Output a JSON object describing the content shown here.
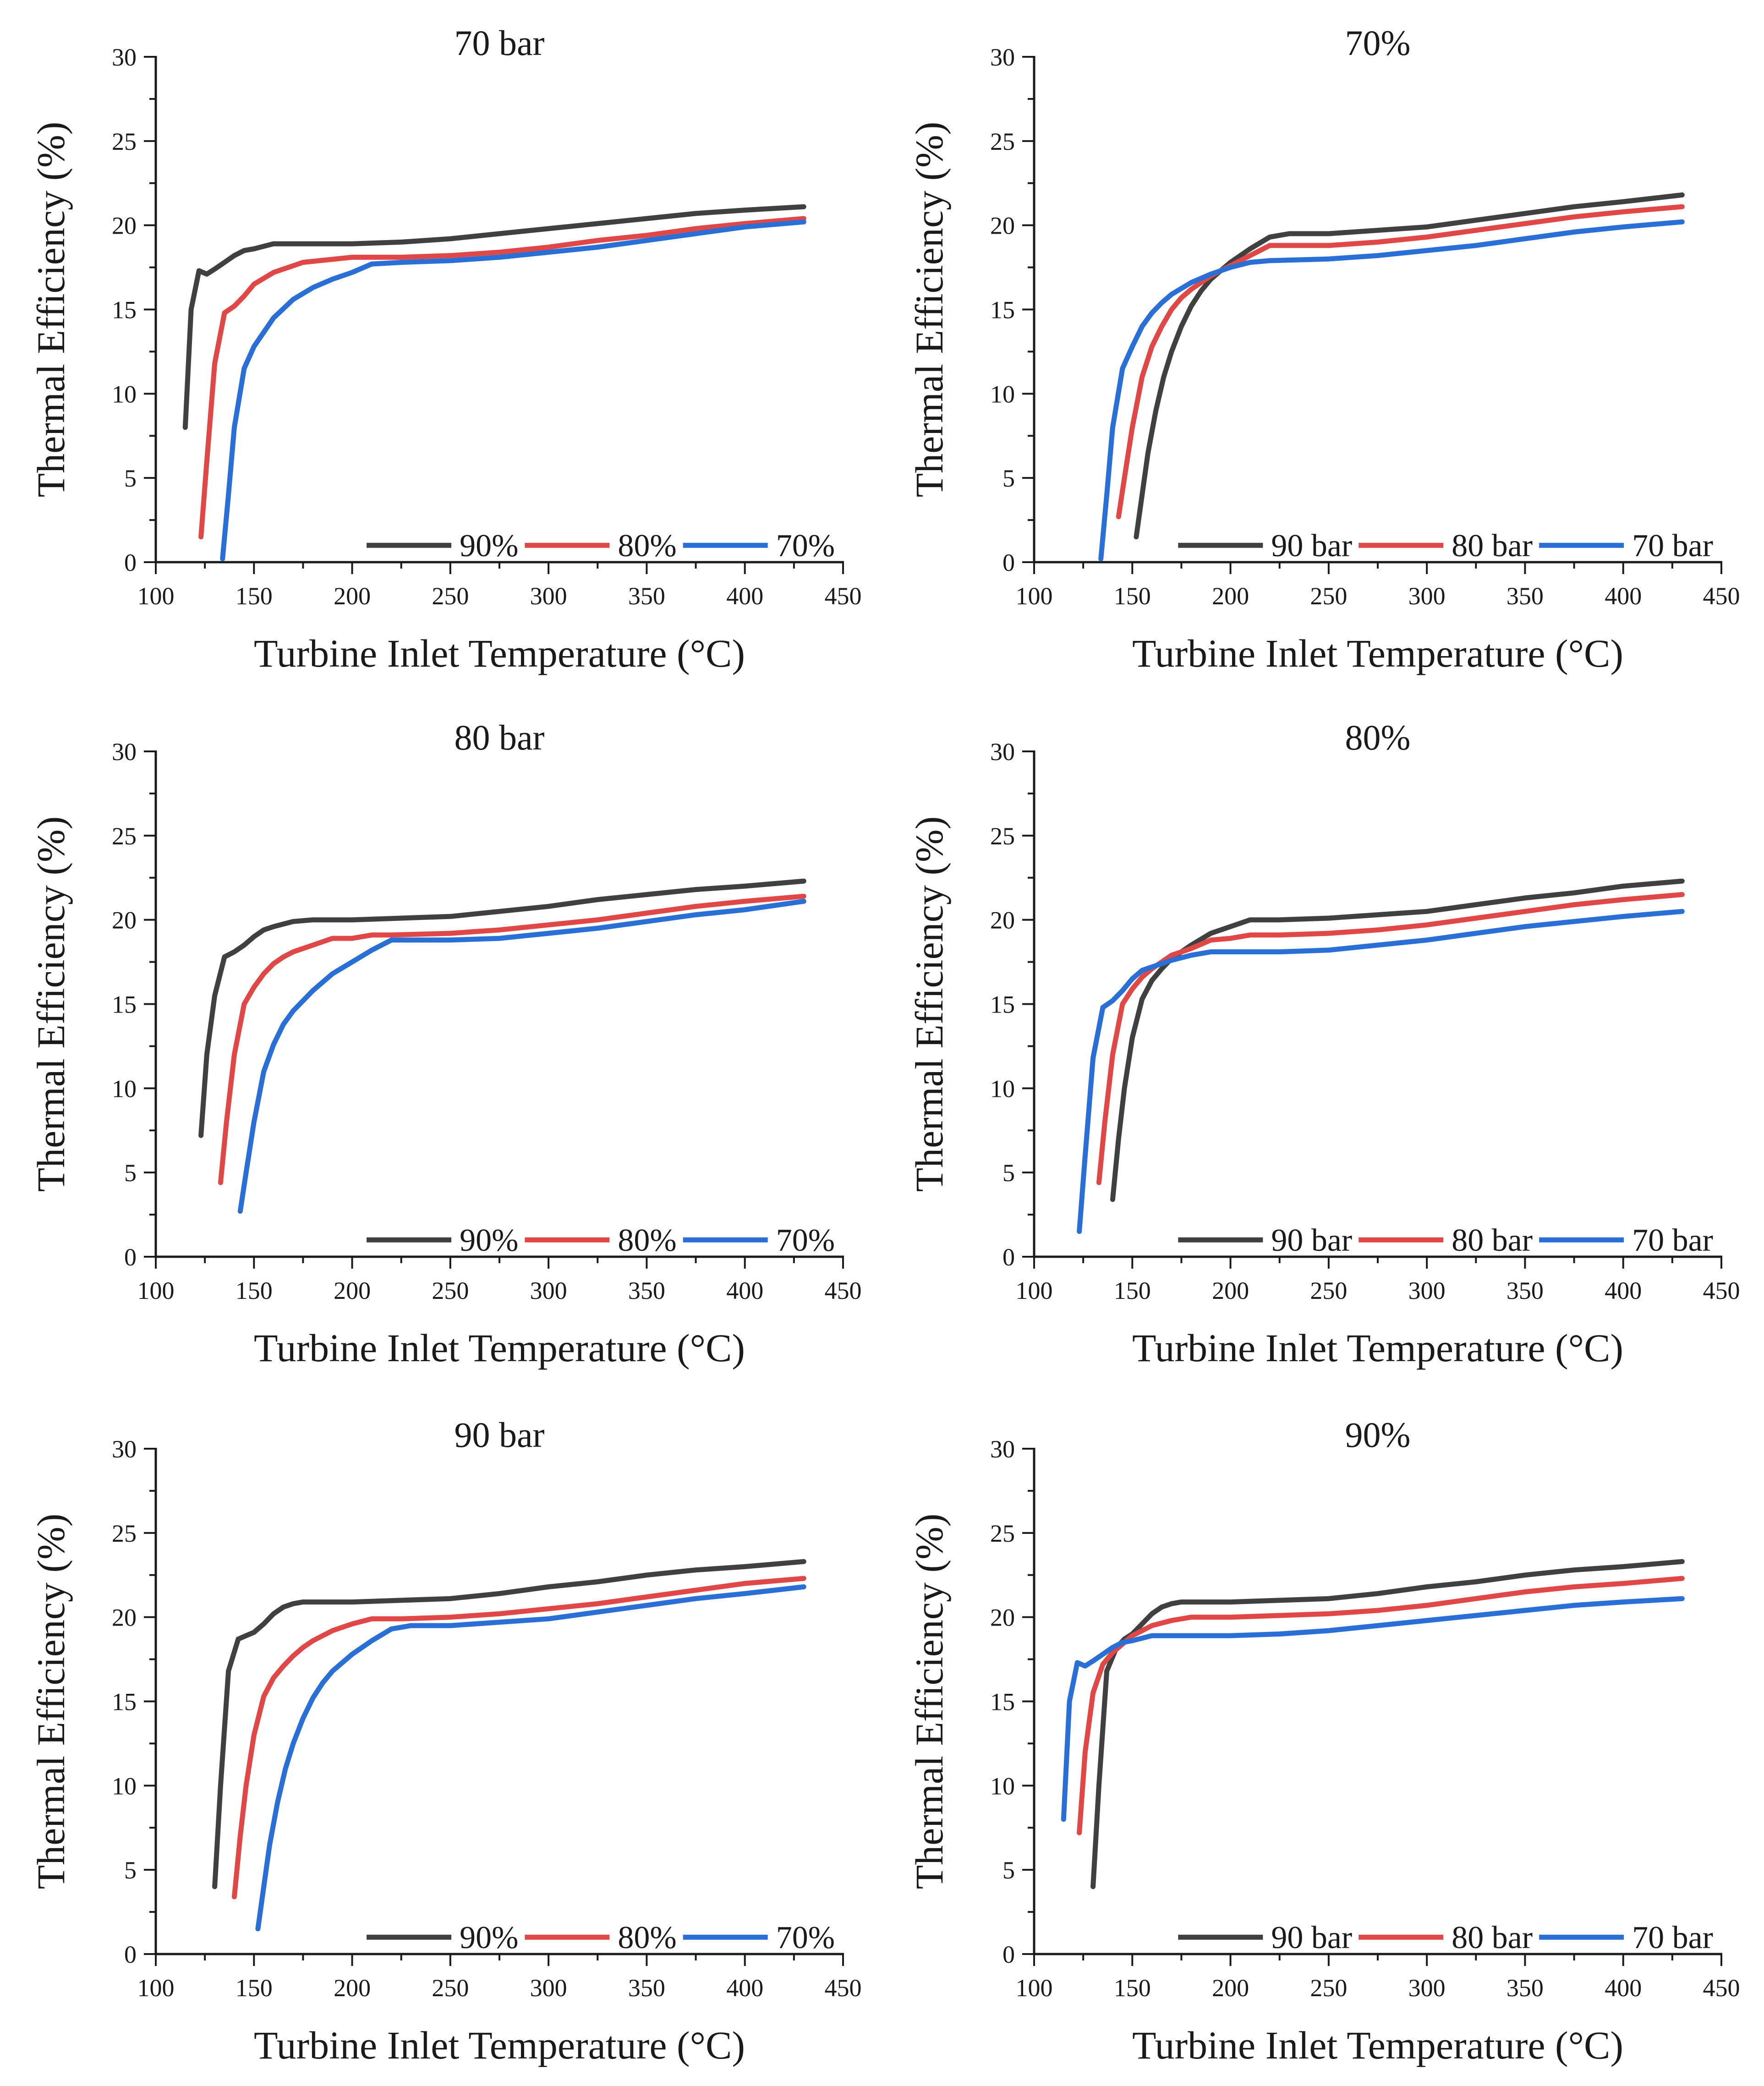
{
  "chart_data": [
    {
      "type": "line",
      "title": "70 bar",
      "xlabel": "Turbine Inlet Temperature (°C)",
      "ylabel": "Thermal Efficiency (%)",
      "xlim": [
        100,
        450
      ],
      "ylim": [
        0,
        30
      ],
      "xticks": [
        100,
        150,
        200,
        250,
        300,
        350,
        400,
        450
      ],
      "yticks": [
        0,
        5,
        10,
        15,
        20,
        25,
        30
      ],
      "legend": "bottom-right",
      "series": [
        {
          "name": "90%",
          "color": "#404040",
          "x": [
            115,
            118,
            122,
            126,
            130,
            135,
            140,
            145,
            150,
            160,
            175,
            200,
            225,
            250,
            275,
            300,
            325,
            350,
            375,
            400,
            430
          ],
          "y": [
            8.0,
            15.0,
            17.3,
            17.1,
            17.4,
            17.8,
            18.2,
            18.5,
            18.6,
            18.9,
            18.9,
            18.9,
            19.0,
            19.2,
            19.5,
            19.8,
            20.1,
            20.4,
            20.7,
            20.9,
            21.1
          ]
        },
        {
          "name": "80%",
          "color": "#e04848",
          "x": [
            123,
            126,
            130,
            135,
            140,
            145,
            150,
            160,
            175,
            200,
            225,
            250,
            275,
            300,
            325,
            350,
            375,
            400,
            430
          ],
          "y": [
            1.5,
            6.0,
            11.8,
            14.8,
            15.2,
            15.8,
            16.5,
            17.2,
            17.8,
            18.1,
            18.1,
            18.2,
            18.4,
            18.7,
            19.1,
            19.4,
            19.8,
            20.1,
            20.4
          ]
        },
        {
          "name": "70%",
          "color": "#2a6fd6",
          "x": [
            134,
            137,
            140,
            145,
            150,
            160,
            170,
            180,
            190,
            200,
            210,
            225,
            250,
            275,
            300,
            325,
            350,
            375,
            400,
            430
          ],
          "y": [
            0.2,
            4.0,
            8.0,
            11.5,
            12.8,
            14.5,
            15.6,
            16.3,
            16.8,
            17.2,
            17.7,
            17.8,
            17.9,
            18.1,
            18.4,
            18.7,
            19.1,
            19.5,
            19.9,
            20.2
          ]
        }
      ]
    },
    {
      "type": "line",
      "title": "70%",
      "xlabel": "Turbine Inlet Temperature (°C)",
      "ylabel": "Thermal Efficiency (%)",
      "xlim": [
        100,
        450
      ],
      "ylim": [
        0,
        30
      ],
      "xticks": [
        100,
        150,
        200,
        250,
        300,
        350,
        400,
        450
      ],
      "yticks": [
        0,
        5,
        10,
        15,
        20,
        25,
        30
      ],
      "legend": "bottom-right",
      "series": [
        {
          "name": "90 bar",
          "color": "#404040",
          "x": [
            152,
            155,
            158,
            162,
            166,
            170,
            175,
            180,
            185,
            190,
            200,
            210,
            220,
            230,
            250,
            275,
            300,
            325,
            350,
            375,
            400,
            430
          ],
          "y": [
            1.5,
            4.0,
            6.5,
            9.0,
            11.0,
            12.5,
            14.0,
            15.2,
            16.1,
            16.8,
            17.8,
            18.6,
            19.3,
            19.5,
            19.5,
            19.7,
            19.9,
            20.3,
            20.7,
            21.1,
            21.4,
            21.8
          ]
        },
        {
          "name": "80 bar",
          "color": "#e04848",
          "x": [
            143,
            146,
            150,
            155,
            160,
            165,
            170,
            175,
            180,
            190,
            200,
            210,
            220,
            250,
            275,
            300,
            325,
            350,
            375,
            400,
            430
          ],
          "y": [
            2.7,
            5.0,
            8.0,
            11.0,
            12.8,
            14.0,
            15.0,
            15.7,
            16.2,
            17.0,
            17.6,
            18.2,
            18.8,
            18.8,
            19.0,
            19.3,
            19.7,
            20.1,
            20.5,
            20.8,
            21.1
          ]
        },
        {
          "name": "70 bar",
          "color": "#2a6fd6",
          "x": [
            134,
            137,
            140,
            145,
            150,
            155,
            160,
            165,
            170,
            180,
            190,
            200,
            210,
            220,
            250,
            275,
            300,
            325,
            350,
            375,
            400,
            430
          ],
          "y": [
            0.2,
            4.0,
            8.0,
            11.5,
            12.8,
            14.0,
            14.8,
            15.4,
            15.9,
            16.6,
            17.1,
            17.5,
            17.8,
            17.9,
            18.0,
            18.2,
            18.5,
            18.8,
            19.2,
            19.6,
            19.9,
            20.2
          ]
        }
      ]
    },
    {
      "type": "line",
      "title": "80 bar",
      "xlabel": "Turbine Inlet Temperature (°C)",
      "ylabel": "Thermal Efficiency (%)",
      "xlim": [
        100,
        450
      ],
      "ylim": [
        0,
        30
      ],
      "xticks": [
        100,
        150,
        200,
        250,
        300,
        350,
        400,
        450
      ],
      "yticks": [
        0,
        5,
        10,
        15,
        20,
        25,
        30
      ],
      "legend": "bottom-right",
      "series": [
        {
          "name": "90%",
          "color": "#404040",
          "x": [
            123,
            126,
            130,
            135,
            140,
            145,
            150,
            155,
            160,
            170,
            180,
            200,
            225,
            250,
            275,
            300,
            325,
            350,
            375,
            400,
            430
          ],
          "y": [
            7.2,
            12.0,
            15.5,
            17.8,
            18.1,
            18.5,
            19.0,
            19.4,
            19.6,
            19.9,
            20.0,
            20.0,
            20.1,
            20.2,
            20.5,
            20.8,
            21.2,
            21.5,
            21.8,
            22.0,
            22.3
          ]
        },
        {
          "name": "80%",
          "color": "#e04848",
          "x": [
            133,
            136,
            140,
            145,
            150,
            155,
            160,
            165,
            170,
            180,
            190,
            200,
            210,
            220,
            250,
            275,
            300,
            325,
            350,
            375,
            400,
            430
          ],
          "y": [
            4.4,
            8.0,
            12.0,
            15.0,
            16.0,
            16.8,
            17.4,
            17.8,
            18.1,
            18.5,
            18.9,
            18.9,
            19.1,
            19.1,
            19.2,
            19.4,
            19.7,
            20.0,
            20.4,
            20.8,
            21.1,
            21.4
          ]
        },
        {
          "name": "70%",
          "color": "#2a6fd6",
          "x": [
            143,
            146,
            150,
            155,
            160,
            165,
            170,
            180,
            190,
            200,
            210,
            220,
            250,
            275,
            300,
            325,
            350,
            375,
            400,
            430
          ],
          "y": [
            2.7,
            5.0,
            8.0,
            11.0,
            12.6,
            13.8,
            14.6,
            15.8,
            16.8,
            17.5,
            18.2,
            18.8,
            18.8,
            18.9,
            19.2,
            19.5,
            19.9,
            20.3,
            20.6,
            21.1
          ]
        }
      ]
    },
    {
      "type": "line",
      "title": "80%",
      "xlabel": "Turbine Inlet Temperature (°C)",
      "ylabel": "Thermal Efficiency (%)",
      "xlim": [
        100,
        450
      ],
      "ylim": [
        0,
        30
      ],
      "xticks": [
        100,
        150,
        200,
        250,
        300,
        350,
        400,
        450
      ],
      "yticks": [
        0,
        5,
        10,
        15,
        20,
        25,
        30
      ],
      "legend": "bottom-right",
      "series": [
        {
          "name": "90 bar",
          "color": "#404040",
          "x": [
            140,
            143,
            146,
            150,
            155,
            160,
            165,
            170,
            175,
            180,
            190,
            200,
            210,
            225,
            250,
            275,
            300,
            325,
            350,
            375,
            400,
            430
          ],
          "y": [
            3.4,
            7.0,
            10.0,
            13.0,
            15.3,
            16.4,
            17.1,
            17.7,
            18.1,
            18.5,
            19.2,
            19.6,
            20.0,
            20.0,
            20.1,
            20.3,
            20.5,
            20.9,
            21.3,
            21.6,
            22.0,
            22.3
          ]
        },
        {
          "name": "80 bar",
          "color": "#e04848",
          "x": [
            133,
            136,
            140,
            145,
            150,
            155,
            160,
            170,
            180,
            190,
            200,
            210,
            225,
            250,
            275,
            300,
            325,
            350,
            375,
            400,
            430
          ],
          "y": [
            4.4,
            8.0,
            12.0,
            15.0,
            15.9,
            16.6,
            17.1,
            17.9,
            18.3,
            18.8,
            18.9,
            19.1,
            19.1,
            19.2,
            19.4,
            19.7,
            20.1,
            20.5,
            20.9,
            21.2,
            21.5
          ]
        },
        {
          "name": "70 bar",
          "color": "#2a6fd6",
          "x": [
            123,
            126,
            130,
            135,
            140,
            145,
            150,
            155,
            160,
            170,
            180,
            190,
            200,
            225,
            250,
            275,
            300,
            325,
            350,
            375,
            400,
            430
          ],
          "y": [
            1.5,
            6.0,
            11.8,
            14.8,
            15.2,
            15.8,
            16.5,
            17.0,
            17.2,
            17.6,
            17.9,
            18.1,
            18.1,
            18.1,
            18.2,
            18.5,
            18.8,
            19.2,
            19.6,
            19.9,
            20.2,
            20.5
          ]
        }
      ]
    },
    {
      "type": "line",
      "title": "90 bar",
      "xlabel": "Turbine Inlet Temperature (°C)",
      "ylabel": "Thermal Efficiency (%)",
      "xlim": [
        100,
        450
      ],
      "ylim": [
        0,
        30
      ],
      "xticks": [
        100,
        150,
        200,
        250,
        300,
        350,
        400,
        450
      ],
      "yticks": [
        0,
        5,
        10,
        15,
        20,
        25,
        30
      ],
      "legend": "bottom-right",
      "series": [
        {
          "name": "90%",
          "color": "#404040",
          "x": [
            130,
            133,
            137,
            142,
            146,
            150,
            155,
            160,
            165,
            170,
            175,
            180,
            200,
            225,
            250,
            275,
            300,
            325,
            350,
            375,
            400,
            430
          ],
          "y": [
            4.0,
            10.0,
            16.8,
            18.7,
            18.9,
            19.1,
            19.6,
            20.2,
            20.6,
            20.8,
            20.9,
            20.9,
            20.9,
            21.0,
            21.1,
            21.4,
            21.8,
            22.1,
            22.5,
            22.8,
            23.0,
            23.3
          ]
        },
        {
          "name": "80%",
          "color": "#e04848",
          "x": [
            140,
            143,
            146,
            150,
            155,
            160,
            165,
            170,
            175,
            180,
            190,
            200,
            210,
            225,
            250,
            275,
            300,
            325,
            350,
            375,
            400,
            430
          ],
          "y": [
            3.4,
            7.0,
            10.0,
            13.0,
            15.3,
            16.4,
            17.1,
            17.7,
            18.2,
            18.6,
            19.2,
            19.6,
            19.9,
            19.9,
            20.0,
            20.2,
            20.5,
            20.8,
            21.2,
            21.6,
            22.0,
            22.3
          ]
        },
        {
          "name": "70%",
          "color": "#2a6fd6",
          "x": [
            152,
            155,
            158,
            162,
            166,
            170,
            175,
            180,
            185,
            190,
            200,
            210,
            220,
            230,
            250,
            275,
            300,
            325,
            350,
            375,
            400,
            430
          ],
          "y": [
            1.5,
            4.0,
            6.5,
            9.0,
            11.0,
            12.5,
            14.0,
            15.2,
            16.1,
            16.8,
            17.8,
            18.6,
            19.3,
            19.5,
            19.5,
            19.7,
            19.9,
            20.3,
            20.7,
            21.1,
            21.4,
            21.8
          ]
        }
      ]
    },
    {
      "type": "line",
      "title": "90%",
      "xlabel": "Turbine Inlet Temperature (°C)",
      "ylabel": "Thermal Efficiency (%)",
      "xlim": [
        100,
        450
      ],
      "ylim": [
        0,
        30
      ],
      "xticks": [
        100,
        150,
        200,
        250,
        300,
        350,
        400,
        450
      ],
      "yticks": [
        0,
        5,
        10,
        15,
        20,
        25,
        30
      ],
      "legend": "bottom-right",
      "series": [
        {
          "name": "90 bar",
          "color": "#404040",
          "x": [
            130,
            133,
            137,
            142,
            146,
            150,
            155,
            160,
            165,
            170,
            175,
            180,
            200,
            225,
            250,
            275,
            300,
            325,
            350,
            375,
            400,
            430
          ],
          "y": [
            4.0,
            10.0,
            16.8,
            18.2,
            18.7,
            19.0,
            19.6,
            20.2,
            20.6,
            20.8,
            20.9,
            20.9,
            20.9,
            21.0,
            21.1,
            21.4,
            21.8,
            22.1,
            22.5,
            22.8,
            23.0,
            23.3
          ]
        },
        {
          "name": "80 bar",
          "color": "#e04848",
          "x": [
            123,
            126,
            130,
            135,
            140,
            145,
            150,
            160,
            170,
            180,
            200,
            225,
            250,
            275,
            300,
            325,
            350,
            375,
            400,
            430
          ],
          "y": [
            7.2,
            12.0,
            15.5,
            17.2,
            17.9,
            18.4,
            18.9,
            19.5,
            19.8,
            20.0,
            20.0,
            20.1,
            20.2,
            20.4,
            20.7,
            21.1,
            21.5,
            21.8,
            22.0,
            22.3
          ]
        },
        {
          "name": "70 bar",
          "color": "#2a6fd6",
          "x": [
            115,
            118,
            122,
            126,
            130,
            135,
            140,
            145,
            150,
            160,
            175,
            200,
            225,
            250,
            275,
            300,
            325,
            350,
            375,
            400,
            430
          ],
          "y": [
            8.0,
            15.0,
            17.3,
            17.1,
            17.4,
            17.8,
            18.2,
            18.5,
            18.6,
            18.9,
            18.9,
            18.9,
            19.0,
            19.2,
            19.5,
            19.8,
            20.1,
            20.4,
            20.7,
            20.9,
            21.1
          ]
        }
      ]
    }
  ]
}
